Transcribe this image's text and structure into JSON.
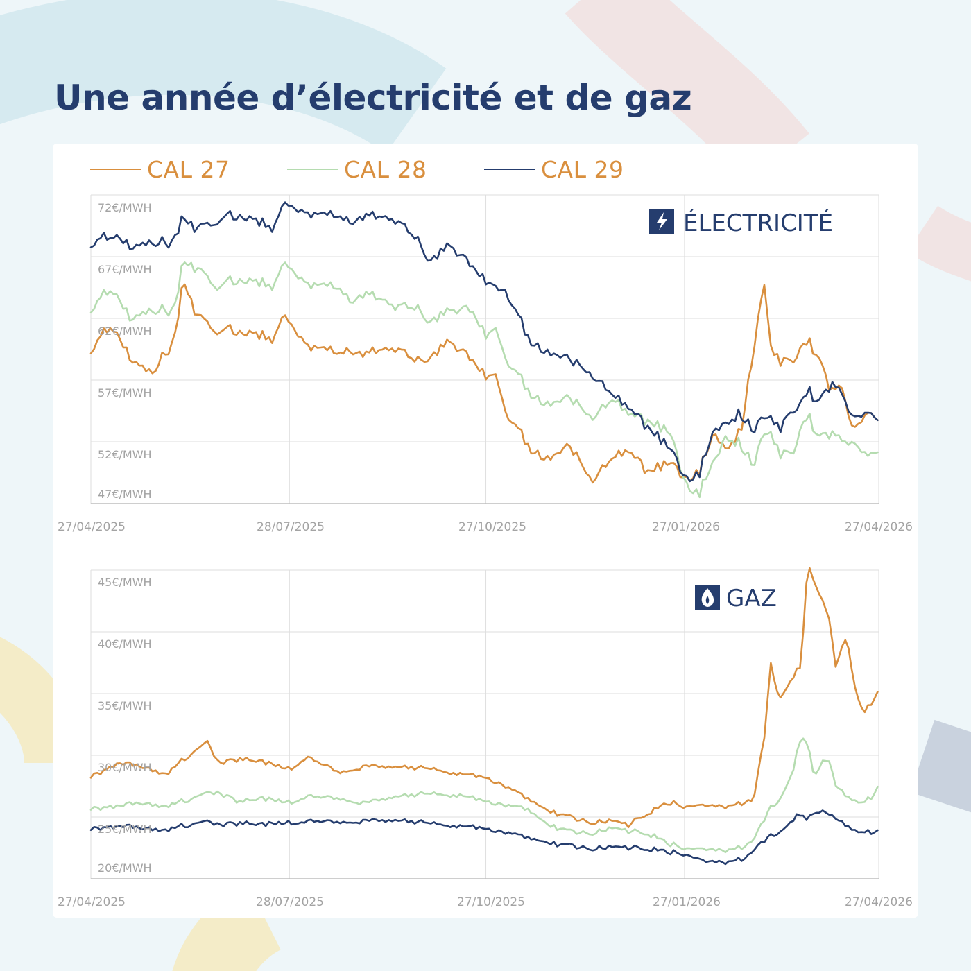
{
  "title": "Une année d’électricité et de gaz",
  "legend": [
    {
      "label": "CAL 27",
      "color": "#d98f3e"
    },
    {
      "label": "CAL 28",
      "color": "#b5dcb0"
    },
    {
      "label": "CAL 29",
      "color": "#253d6e"
    }
  ],
  "colors": {
    "title": "#253d6e",
    "grid": "#dddddd",
    "axis": "#bdbdbd",
    "tick": "#a3a3a3"
  },
  "chart_data": [
    {
      "type": "line",
      "title": "ÉLECTRICITÉ",
      "icon": "lightning-icon",
      "xlabel": "",
      "ylabel": "",
      "x_ticks": [
        "27/04/2025",
        "28/07/2025",
        "27/10/2025",
        "27/01/2026",
        "27/04/2026"
      ],
      "y_ticks": [
        "72€/MWH",
        "67€/MWH",
        "62€/MWH",
        "57€/MWH",
        "52€/MWH",
        "47€/MWH"
      ],
      "xlim": [
        "27/04/2025",
        "27/04/2026"
      ],
      "ylim": [
        47,
        72
      ],
      "grid": true,
      "series": [
        {
          "name": "CAL 27",
          "color": "#d98f3e",
          "x": [
            "27/04/2025",
            "06/05/2025",
            "15/05/2025",
            "25/05/2025",
            "05/06/2025",
            "09/06/2025",
            "15/06/2025",
            "25/06/2025",
            "05/07/2025",
            "20/07/2025",
            "25/07/2025",
            "05/08/2025",
            "20/08/2025",
            "25/08/2025",
            "01/09/2025",
            "15/09/2025",
            "25/09/2025",
            "01/10/2025",
            "10/10/2025",
            "20/10/2025",
            "27/10/2025",
            "01/11/2025",
            "05/11/2025",
            "15/11/2025",
            "25/11/2025",
            "05/12/2025",
            "15/12/2025",
            "25/12/2025",
            "01/01/2026",
            "10/01/2026",
            "20/01/2026",
            "27/01/2026",
            "02/02/2026",
            "10/02/2026",
            "15/02/2026",
            "22/02/2026",
            "28/02/2026",
            "05/03/2026",
            "08/03/2026",
            "12/03/2026",
            "18/03/2026",
            "22/03/2026",
            "25/03/2026",
            "30/03/2026",
            "05/04/2026",
            "10/04/2026",
            "15/04/2026",
            "22/04/2026",
            "27/04/2026"
          ],
          "y": [
            59.2,
            61.5,
            58.8,
            57.4,
            60.3,
            65.2,
            62.0,
            61.0,
            61.0,
            60.3,
            62.3,
            59.9,
            59.2,
            59.5,
            59.0,
            59.7,
            58.6,
            59.0,
            60.2,
            58.4,
            57.3,
            57.7,
            54.2,
            51.8,
            50.4,
            51.9,
            48.7,
            50.7,
            51.5,
            49.4,
            50.3,
            48.7,
            49.4,
            52.7,
            51.3,
            52.8,
            59.4,
            65.1,
            59.5,
            58.5,
            58.5,
            59.5,
            60.0,
            59.0,
            55.9,
            56.5,
            53.0,
            54.5,
            54.0
          ]
        },
        {
          "name": "CAL 28",
          "color": "#b5dcb0",
          "x": [
            "27/04/2025",
            "06/05/2025",
            "15/05/2025",
            "25/05/2025",
            "05/06/2025",
            "09/06/2025",
            "15/06/2025",
            "25/06/2025",
            "05/07/2025",
            "20/07/2025",
            "25/07/2025",
            "05/08/2025",
            "20/08/2025",
            "25/08/2025",
            "01/09/2025",
            "15/09/2025",
            "25/09/2025",
            "01/10/2025",
            "10/10/2025",
            "20/10/2025",
            "27/10/2025",
            "01/11/2025",
            "05/11/2025",
            "15/11/2025",
            "25/11/2025",
            "05/12/2025",
            "15/12/2025",
            "25/12/2025",
            "01/01/2026",
            "10/01/2026",
            "20/01/2026",
            "27/01/2026",
            "02/02/2026",
            "10/02/2026",
            "15/02/2026",
            "22/02/2026",
            "28/02/2026",
            "05/03/2026",
            "08/03/2026",
            "12/03/2026",
            "18/03/2026",
            "22/03/2026",
            "25/03/2026",
            "30/03/2026",
            "05/04/2026",
            "10/04/2026",
            "15/04/2026",
            "22/04/2026",
            "27/04/2026"
          ],
          "y": [
            62.5,
            64.5,
            62.0,
            62.5,
            62.7,
            66.8,
            65.8,
            64.6,
            65.2,
            64.6,
            66.5,
            64.9,
            64.5,
            63.5,
            63.9,
            63.1,
            62.9,
            61.9,
            62.7,
            62.4,
            60.6,
            61.5,
            58.5,
            56.3,
            54.8,
            55.8,
            53.8,
            55.4,
            54.5,
            53.5,
            52.8,
            48.5,
            47.7,
            50.5,
            52.3,
            51.8,
            50.0,
            53.0,
            52.5,
            51.0,
            51.0,
            53.0,
            54.0,
            52.5,
            52.5,
            52.2,
            52.0,
            51.0,
            51.5
          ]
        },
        {
          "name": "CAL 29",
          "color": "#253d6e",
          "x": [
            "27/04/2025",
            "06/05/2025",
            "15/05/2025",
            "25/05/2025",
            "05/06/2025",
            "09/06/2025",
            "15/06/2025",
            "25/06/2025",
            "05/07/2025",
            "20/07/2025",
            "25/07/2025",
            "05/08/2025",
            "20/08/2025",
            "25/08/2025",
            "01/09/2025",
            "15/09/2025",
            "25/09/2025",
            "01/10/2025",
            "10/10/2025",
            "20/10/2025",
            "27/10/2025",
            "01/11/2025",
            "05/11/2025",
            "15/11/2025",
            "25/11/2025",
            "05/12/2025",
            "15/12/2025",
            "25/12/2025",
            "01/01/2026",
            "10/01/2026",
            "20/01/2026",
            "27/01/2026",
            "02/02/2026",
            "10/02/2026",
            "15/02/2026",
            "22/02/2026",
            "28/02/2026",
            "05/03/2026",
            "08/03/2026",
            "12/03/2026",
            "18/03/2026",
            "22/03/2026",
            "25/03/2026",
            "30/03/2026",
            "05/04/2026",
            "10/04/2026",
            "15/04/2026",
            "22/04/2026",
            "27/04/2026"
          ],
          "y": [
            67.8,
            68.8,
            67.8,
            68.0,
            68.2,
            70.3,
            69.0,
            70.0,
            70.4,
            69.3,
            71.3,
            70.6,
            70.3,
            69.9,
            70.2,
            70.1,
            68.5,
            66.8,
            68.0,
            66.0,
            65.0,
            64.8,
            64.0,
            60.6,
            59.0,
            58.9,
            57.3,
            55.7,
            55.0,
            53.0,
            51.5,
            48.8,
            49.2,
            53.0,
            53.4,
            54.3,
            52.8,
            54.3,
            53.8,
            53.0,
            54.5,
            55.0,
            56.0,
            55.3,
            56.5,
            56.0,
            54.0,
            54.5,
            54.0
          ]
        }
      ]
    },
    {
      "type": "line",
      "title": "GAZ",
      "icon": "flame-icon",
      "xlabel": "",
      "ylabel": "",
      "x_ticks": [
        "27/04/2025",
        "28/07/2025",
        "27/10/2025",
        "27/01/2026",
        "27/04/2026"
      ],
      "y_ticks": [
        "45€/MWH",
        "40€/MWH",
        "35€/MWH",
        "30€/MWH",
        "25€/MWH",
        "20€/MWH"
      ],
      "xlim": [
        "27/04/2025",
        "27/04/2026"
      ],
      "ylim": [
        20,
        46
      ],
      "grid": true,
      "series": [
        {
          "name": "CAL 27",
          "color": "#d98f3e",
          "x": [
            "27/04/2025",
            "10/05/2025",
            "20/05/2025",
            "01/06/2025",
            "10/06/2025",
            "20/06/2025",
            "25/06/2025",
            "05/07/2025",
            "15/07/2025",
            "28/07/2025",
            "05/08/2025",
            "20/08/2025",
            "01/09/2025",
            "15/09/2025",
            "01/10/2025",
            "15/10/2025",
            "27/10/2025",
            "05/11/2025",
            "15/11/2025",
            "25/11/2025",
            "05/12/2025",
            "15/12/2025",
            "25/12/2025",
            "01/01/2026",
            "10/01/2026",
            "20/01/2026",
            "27/01/2026",
            "05/02/2026",
            "15/02/2026",
            "25/02/2026",
            "28/02/2026",
            "05/03/2026",
            "08/03/2026",
            "12/03/2026",
            "18/03/2026",
            "22/03/2026",
            "25/03/2026",
            "28/03/2026",
            "01/04/2026",
            "04/04/2026",
            "07/04/2026",
            "12/04/2026",
            "16/04/2026",
            "20/04/2026",
            "24/04/2026",
            "27/04/2026"
          ],
          "y": [
            28.6,
            29.7,
            29.5,
            28.8,
            30.2,
            31.4,
            29.8,
            30.1,
            29.9,
            29.2,
            30.3,
            29.0,
            29.5,
            29.4,
            29.3,
            28.8,
            28.5,
            27.8,
            26.8,
            25.7,
            25.2,
            24.7,
            24.9,
            24.5,
            25.5,
            26.5,
            26.0,
            26.2,
            26.0,
            26.5,
            26.5,
            32.0,
            38.0,
            35.0,
            37.0,
            38.0,
            46.5,
            45.0,
            43.5,
            42.0,
            38.0,
            40.5,
            36.0,
            34.0,
            35.0,
            36.0
          ]
        },
        {
          "name": "CAL 28",
          "color": "#b5dcb0",
          "x": [
            "27/04/2025",
            "10/05/2025",
            "20/05/2025",
            "01/06/2025",
            "10/06/2025",
            "20/06/2025",
            "25/06/2025",
            "05/07/2025",
            "15/07/2025",
            "28/07/2025",
            "05/08/2025",
            "20/08/2025",
            "01/09/2025",
            "15/09/2025",
            "01/10/2025",
            "15/10/2025",
            "27/10/2025",
            "05/11/2025",
            "15/11/2025",
            "25/11/2025",
            "05/12/2025",
            "15/12/2025",
            "25/12/2025",
            "01/01/2026",
            "10/01/2026",
            "20/01/2026",
            "27/01/2026",
            "05/02/2026",
            "15/02/2026",
            "25/02/2026",
            "28/02/2026",
            "05/03/2026",
            "08/03/2026",
            "12/03/2026",
            "18/03/2026",
            "22/03/2026",
            "25/03/2026",
            "28/03/2026",
            "01/04/2026",
            "04/04/2026",
            "07/04/2026",
            "12/04/2026",
            "16/04/2026",
            "20/04/2026",
            "24/04/2026",
            "27/04/2026"
          ],
          "y": [
            25.9,
            26.1,
            26.4,
            26.1,
            26.6,
            27.1,
            27.3,
            26.5,
            26.8,
            26.4,
            27.0,
            26.8,
            26.4,
            26.9,
            27.2,
            27.0,
            26.5,
            26.2,
            25.9,
            24.5,
            24.0,
            23.8,
            24.3,
            24.0,
            23.8,
            23.0,
            22.5,
            22.5,
            22.3,
            22.8,
            23.2,
            25.0,
            26.0,
            26.5,
            29.0,
            32.0,
            31.5,
            28.5,
            30.0,
            30.0,
            28.0,
            27.0,
            26.5,
            26.5,
            27.0,
            28.0
          ]
        },
        {
          "name": "CAL 29",
          "color": "#253d6e",
          "x": [
            "27/04/2025",
            "10/05/2025",
            "20/05/2025",
            "01/06/2025",
            "10/06/2025",
            "20/06/2025",
            "25/06/2025",
            "05/07/2025",
            "15/07/2025",
            "28/07/2025",
            "05/08/2025",
            "20/08/2025",
            "01/09/2025",
            "15/09/2025",
            "01/10/2025",
            "15/10/2025",
            "27/10/2025",
            "05/11/2025",
            "15/11/2025",
            "25/11/2025",
            "05/12/2025",
            "15/12/2025",
            "25/12/2025",
            "01/01/2026",
            "10/01/2026",
            "20/01/2026",
            "27/01/2026",
            "05/02/2026",
            "15/02/2026",
            "25/02/2026",
            "28/02/2026",
            "05/03/2026",
            "08/03/2026",
            "12/03/2026",
            "18/03/2026",
            "22/03/2026",
            "25/03/2026",
            "28/03/2026",
            "01/04/2026",
            "04/04/2026",
            "07/04/2026",
            "12/04/2026",
            "16/04/2026",
            "20/04/2026",
            "24/04/2026",
            "27/04/2026"
          ],
          "y": [
            24.2,
            24.4,
            24.3,
            24.1,
            24.5,
            24.7,
            24.6,
            24.7,
            24.6,
            24.7,
            24.9,
            24.8,
            24.9,
            24.9,
            24.7,
            24.4,
            24.2,
            23.9,
            23.5,
            23.0,
            22.8,
            22.5,
            22.7,
            22.6,
            22.5,
            22.3,
            22.0,
            21.5,
            21.3,
            21.8,
            22.3,
            23.2,
            23.6,
            23.8,
            25.0,
            25.5,
            25.0,
            25.5,
            25.8,
            25.5,
            25.2,
            24.5,
            24.0,
            24.0,
            24.0,
            24.2
          ]
        }
      ]
    }
  ]
}
